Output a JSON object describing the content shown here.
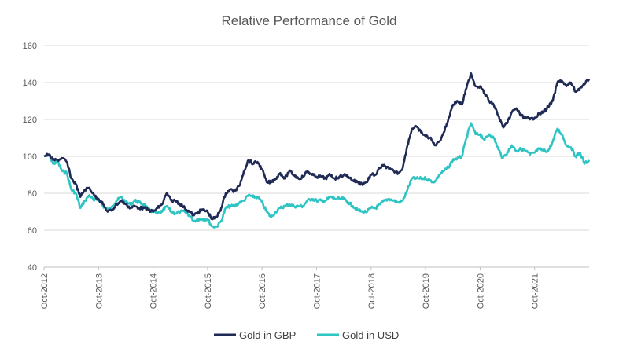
{
  "chart_data": {
    "type": "line",
    "title": "Relative Performance of Gold",
    "xlabel": "",
    "ylabel": "",
    "ylim": [
      40,
      160
    ],
    "yticks": [
      40,
      60,
      80,
      100,
      120,
      140,
      160
    ],
    "x_tick_labels": [
      "Oct-2012",
      "Oct-2013",
      "Oct-2014",
      "Oct-2015",
      "Oct-2016",
      "Oct-2017",
      "Oct-2018",
      "Oct-2019",
      "Oct-2020",
      "Oct-2021"
    ],
    "xlim": [
      "2012-10",
      "2022-10"
    ],
    "grid": "horizontal",
    "legend_position": "bottom",
    "series": [
      {
        "name": "Gold in GBP",
        "color": "#1f2a55",
        "points": [
          [
            "2012-10",
            100
          ],
          [
            "2012-11",
            101
          ],
          [
            "2012-12",
            98
          ],
          [
            "2013-01",
            98
          ],
          [
            "2013-02",
            99
          ],
          [
            "2013-03",
            97
          ],
          [
            "2013-04",
            88
          ],
          [
            "2013-05",
            85
          ],
          [
            "2013-06",
            78
          ],
          [
            "2013-07",
            82
          ],
          [
            "2013-08",
            83
          ],
          [
            "2013-09",
            79
          ],
          [
            "2013-10",
            77
          ],
          [
            "2013-11",
            74
          ],
          [
            "2013-12",
            70
          ],
          [
            "2014-01",
            71
          ],
          [
            "2014-02",
            74
          ],
          [
            "2014-03",
            76
          ],
          [
            "2014-04",
            74
          ],
          [
            "2014-05",
            72
          ],
          [
            "2014-06",
            73
          ],
          [
            "2014-07",
            72
          ],
          [
            "2014-08",
            72
          ],
          [
            "2014-09",
            71
          ],
          [
            "2014-10",
            70
          ],
          [
            "2014-11",
            72
          ],
          [
            "2014-12",
            74
          ],
          [
            "2015-01",
            80
          ],
          [
            "2015-02",
            76
          ],
          [
            "2015-03",
            76
          ],
          [
            "2015-04",
            74
          ],
          [
            "2015-05",
            72
          ],
          [
            "2015-06",
            70
          ],
          [
            "2015-07",
            68
          ],
          [
            "2015-08",
            70
          ],
          [
            "2015-09",
            71
          ],
          [
            "2015-10",
            70
          ],
          [
            "2015-11",
            66
          ],
          [
            "2015-12",
            67
          ],
          [
            "2016-01",
            72
          ],
          [
            "2016-02",
            80
          ],
          [
            "2016-03",
            82
          ],
          [
            "2016-04",
            81
          ],
          [
            "2016-05",
            84
          ],
          [
            "2016-06",
            92
          ],
          [
            "2016-07",
            98
          ],
          [
            "2016-08",
            96
          ],
          [
            "2016-09",
            97
          ],
          [
            "2016-10",
            93
          ],
          [
            "2016-11",
            86
          ],
          [
            "2016-12",
            86
          ],
          [
            "2017-01",
            88
          ],
          [
            "2017-02",
            91
          ],
          [
            "2017-03",
            88
          ],
          [
            "2017-04",
            92
          ],
          [
            "2017-05",
            90
          ],
          [
            "2017-06",
            88
          ],
          [
            "2017-07",
            89
          ],
          [
            "2017-08",
            92
          ],
          [
            "2017-09",
            90
          ],
          [
            "2017-10",
            89
          ],
          [
            "2017-11",
            89
          ],
          [
            "2017-12",
            88
          ],
          [
            "2018-01",
            90
          ],
          [
            "2018-02",
            88
          ],
          [
            "2018-03",
            89
          ],
          [
            "2018-04",
            90
          ],
          [
            "2018-05",
            89
          ],
          [
            "2018-06",
            87
          ],
          [
            "2018-07",
            86
          ],
          [
            "2018-08",
            85
          ],
          [
            "2018-09",
            86
          ],
          [
            "2018-10",
            90
          ],
          [
            "2018-11",
            90
          ],
          [
            "2018-12",
            94
          ],
          [
            "2019-01",
            95
          ],
          [
            "2019-02",
            93
          ],
          [
            "2019-03",
            92
          ],
          [
            "2019-04",
            91
          ],
          [
            "2019-05",
            94
          ],
          [
            "2019-06",
            106
          ],
          [
            "2019-07",
            115
          ],
          [
            "2019-08",
            116
          ],
          [
            "2019-09",
            113
          ],
          [
            "2019-10",
            111
          ],
          [
            "2019-11",
            110
          ],
          [
            "2019-12",
            106
          ],
          [
            "2020-01",
            108
          ],
          [
            "2020-02",
            113
          ],
          [
            "2020-03",
            120
          ],
          [
            "2020-04",
            128
          ],
          [
            "2020-05",
            130
          ],
          [
            "2020-06",
            128
          ],
          [
            "2020-07",
            137
          ],
          [
            "2020-08",
            145
          ],
          [
            "2020-09",
            138
          ],
          [
            "2020-10",
            138
          ],
          [
            "2020-11",
            134
          ],
          [
            "2020-12",
            130
          ],
          [
            "2021-01",
            128
          ],
          [
            "2021-02",
            122
          ],
          [
            "2021-03",
            116
          ],
          [
            "2021-04",
            118
          ],
          [
            "2021-05",
            124
          ],
          [
            "2021-06",
            126
          ],
          [
            "2021-07",
            122
          ],
          [
            "2021-08",
            121
          ],
          [
            "2021-09",
            120
          ],
          [
            "2021-10",
            121
          ],
          [
            "2021-11",
            123
          ],
          [
            "2021-12",
            124
          ],
          [
            "2022-01",
            127
          ],
          [
            "2022-02",
            130
          ],
          [
            "2022-03",
            140
          ],
          [
            "2022-04",
            141
          ],
          [
            "2022-05",
            138
          ],
          [
            "2022-06",
            140
          ],
          [
            "2022-07",
            135
          ],
          [
            "2022-08",
            137
          ],
          [
            "2022-09",
            139
          ],
          [
            "2022-10",
            142
          ]
        ]
      },
      {
        "name": "Gold in USD",
        "color": "#2ec4c4",
        "points": [
          [
            "2012-10",
            100
          ],
          [
            "2012-11",
            101
          ],
          [
            "2012-12",
            96
          ],
          [
            "2013-01",
            97
          ],
          [
            "2013-02",
            92
          ],
          [
            "2013-03",
            91
          ],
          [
            "2013-04",
            82
          ],
          [
            "2013-05",
            80
          ],
          [
            "2013-06",
            72
          ],
          [
            "2013-07",
            76
          ],
          [
            "2013-08",
            79
          ],
          [
            "2013-09",
            76
          ],
          [
            "2013-10",
            77
          ],
          [
            "2013-11",
            73
          ],
          [
            "2013-12",
            71
          ],
          [
            "2014-01",
            73
          ],
          [
            "2014-02",
            76
          ],
          [
            "2014-03",
            78
          ],
          [
            "2014-04",
            75
          ],
          [
            "2014-05",
            74
          ],
          [
            "2014-06",
            76
          ],
          [
            "2014-07",
            75
          ],
          [
            "2014-08",
            74
          ],
          [
            "2014-09",
            71
          ],
          [
            "2014-10",
            70
          ],
          [
            "2014-11",
            69
          ],
          [
            "2014-12",
            70
          ],
          [
            "2015-01",
            73
          ],
          [
            "2015-02",
            70
          ],
          [
            "2015-03",
            69
          ],
          [
            "2015-04",
            70
          ],
          [
            "2015-05",
            70
          ],
          [
            "2015-06",
            68
          ],
          [
            "2015-07",
            65
          ],
          [
            "2015-08",
            66
          ],
          [
            "2015-09",
            66
          ],
          [
            "2015-10",
            66
          ],
          [
            "2015-11",
            62
          ],
          [
            "2015-12",
            62
          ],
          [
            "2016-01",
            65
          ],
          [
            "2016-02",
            72
          ],
          [
            "2016-03",
            73
          ],
          [
            "2016-04",
            73
          ],
          [
            "2016-05",
            75
          ],
          [
            "2016-06",
            76
          ],
          [
            "2016-07",
            79
          ],
          [
            "2016-08",
            78
          ],
          [
            "2016-09",
            78
          ],
          [
            "2016-10",
            75
          ],
          [
            "2016-11",
            70
          ],
          [
            "2016-12",
            67
          ],
          [
            "2017-01",
            70
          ],
          [
            "2017-02",
            72
          ],
          [
            "2017-03",
            73
          ],
          [
            "2017-04",
            74
          ],
          [
            "2017-05",
            73
          ],
          [
            "2017-06",
            73
          ],
          [
            "2017-07",
            73
          ],
          [
            "2017-08",
            76
          ],
          [
            "2017-09",
            77
          ],
          [
            "2017-10",
            76
          ],
          [
            "2017-11",
            76
          ],
          [
            "2017-12",
            76
          ],
          [
            "2018-01",
            78
          ],
          [
            "2018-02",
            77
          ],
          [
            "2018-03",
            77
          ],
          [
            "2018-04",
            77
          ],
          [
            "2018-05",
            75
          ],
          [
            "2018-06",
            73
          ],
          [
            "2018-07",
            71
          ],
          [
            "2018-08",
            70
          ],
          [
            "2018-09",
            70
          ],
          [
            "2018-10",
            72
          ],
          [
            "2018-11",
            72
          ],
          [
            "2018-12",
            74
          ],
          [
            "2019-01",
            76
          ],
          [
            "2019-02",
            77
          ],
          [
            "2019-03",
            76
          ],
          [
            "2019-04",
            75
          ],
          [
            "2019-05",
            76
          ],
          [
            "2019-06",
            82
          ],
          [
            "2019-07",
            88
          ],
          [
            "2019-08",
            88
          ],
          [
            "2019-09",
            88
          ],
          [
            "2019-10",
            88
          ],
          [
            "2019-11",
            87
          ],
          [
            "2019-12",
            86
          ],
          [
            "2020-01",
            90
          ],
          [
            "2020-02",
            92
          ],
          [
            "2020-03",
            94
          ],
          [
            "2020-04",
            98
          ],
          [
            "2020-05",
            99
          ],
          [
            "2020-06",
            100
          ],
          [
            "2020-07",
            110
          ],
          [
            "2020-08",
            118
          ],
          [
            "2020-09",
            112
          ],
          [
            "2020-10",
            112
          ],
          [
            "2020-11",
            109
          ],
          [
            "2020-12",
            112
          ],
          [
            "2021-01",
            110
          ],
          [
            "2021-02",
            104
          ],
          [
            "2021-03",
            99
          ],
          [
            "2021-04",
            102
          ],
          [
            "2021-05",
            106
          ],
          [
            "2021-06",
            103
          ],
          [
            "2021-07",
            104
          ],
          [
            "2021-08",
            103
          ],
          [
            "2021-09",
            101
          ],
          [
            "2021-10",
            102
          ],
          [
            "2021-11",
            104
          ],
          [
            "2021-12",
            103
          ],
          [
            "2022-01",
            103
          ],
          [
            "2022-02",
            108
          ],
          [
            "2022-03",
            115
          ],
          [
            "2022-04",
            112
          ],
          [
            "2022-05",
            106
          ],
          [
            "2022-06",
            105
          ],
          [
            "2022-07",
            100
          ],
          [
            "2022-08",
            102
          ],
          [
            "2022-09",
            96
          ],
          [
            "2022-10",
            98
          ]
        ]
      }
    ]
  }
}
